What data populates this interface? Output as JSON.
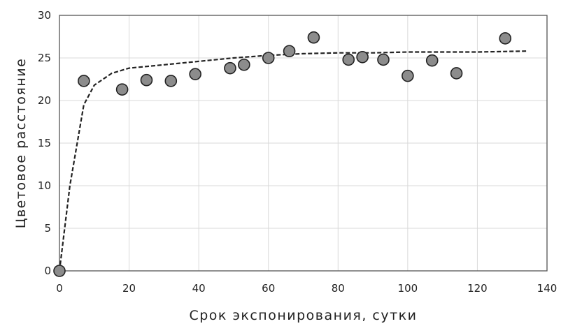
{
  "chart_data": {
    "type": "scatter",
    "title": "",
    "xlabel": "Срок экспонирования, сутки",
    "ylabel": "Цветовое расстояние",
    "xlim": [
      0,
      140
    ],
    "ylim": [
      0,
      30
    ],
    "xticks": [
      0,
      20,
      40,
      60,
      80,
      100,
      120,
      140
    ],
    "yticks": [
      0,
      5,
      10,
      15,
      20,
      25,
      30
    ],
    "xtick_labels": [
      "0",
      "20",
      "40",
      "60",
      "80",
      "100",
      "120",
      "140"
    ],
    "ytick_labels": [
      "0",
      "5",
      "10",
      "15",
      "20",
      "25",
      "30"
    ],
    "grid": true,
    "legend": "none",
    "series": [
      {
        "kind": "points",
        "marker_color": "#8c8c8c",
        "edge_color": "#222222",
        "points": [
          {
            "x": 0,
            "y": 0
          },
          {
            "x": 7,
            "y": 22.3
          },
          {
            "x": 18,
            "y": 21.3
          },
          {
            "x": 25,
            "y": 22.4
          },
          {
            "x": 32,
            "y": 22.3
          },
          {
            "x": 39,
            "y": 23.1
          },
          {
            "x": 49,
            "y": 23.8
          },
          {
            "x": 53,
            "y": 24.2
          },
          {
            "x": 60,
            "y": 25.0
          },
          {
            "x": 66,
            "y": 25.8
          },
          {
            "x": 73,
            "y": 27.4
          },
          {
            "x": 83,
            "y": 24.8
          },
          {
            "x": 87,
            "y": 25.1
          },
          {
            "x": 93,
            "y": 24.8
          },
          {
            "x": 100,
            "y": 22.9
          },
          {
            "x": 107,
            "y": 24.7
          },
          {
            "x": 114,
            "y": 23.2
          },
          {
            "x": 128,
            "y": 27.3
          }
        ]
      },
      {
        "kind": "trend-line",
        "style": "dashed",
        "line_color": "#222222",
        "points": [
          {
            "x": 0,
            "y": 0
          },
          {
            "x": 3,
            "y": 10
          },
          {
            "x": 7,
            "y": 19.5
          },
          {
            "x": 10,
            "y": 21.8
          },
          {
            "x": 15,
            "y": 23.2
          },
          {
            "x": 20,
            "y": 23.8
          },
          {
            "x": 30,
            "y": 24.2
          },
          {
            "x": 40,
            "y": 24.6
          },
          {
            "x": 50,
            "y": 25.0
          },
          {
            "x": 60,
            "y": 25.3
          },
          {
            "x": 70,
            "y": 25.5
          },
          {
            "x": 80,
            "y": 25.6
          },
          {
            "x": 90,
            "y": 25.6
          },
          {
            "x": 100,
            "y": 25.7
          },
          {
            "x": 110,
            "y": 25.7
          },
          {
            "x": 120,
            "y": 25.7
          },
          {
            "x": 134,
            "y": 25.8
          }
        ]
      }
    ]
  }
}
